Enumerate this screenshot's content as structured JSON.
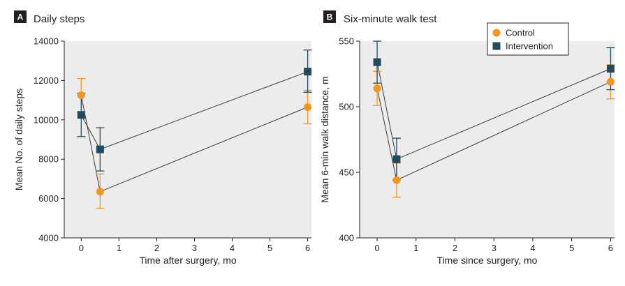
{
  "colors": {
    "plot_background": "#ececec",
    "control": "#f7941d",
    "intervention": "#1f4b5c",
    "line": "#3a3a3a",
    "axis": "#231f20",
    "letter_box": "#231f20"
  },
  "legend": {
    "items": [
      {
        "label": "Control",
        "marker": "circle",
        "color": "#f7941d"
      },
      {
        "label": "Intervention",
        "marker": "square",
        "color": "#1f4b5c"
      }
    ]
  },
  "chart_data": [
    {
      "type": "line",
      "panel_letter": "A",
      "title": "Daily steps",
      "xlabel": "Time after surgery, mo",
      "ylabel": "Mean No. of daily steps",
      "xlim": [
        -0.45,
        6.1
      ],
      "ylim": [
        4000,
        14000
      ],
      "xticks": [
        0,
        1,
        2,
        3,
        4,
        5,
        6
      ],
      "yticks": [
        4000,
        6000,
        8000,
        10000,
        12000,
        14000
      ],
      "ytick_labels": [
        "4000",
        "6000",
        "8000",
        "10000",
        "12000",
        "14000"
      ],
      "grid": false,
      "series": [
        {
          "name": "Control",
          "x": [
            0,
            0.5,
            6
          ],
          "y": [
            11250,
            6350,
            10650
          ],
          "err_low": [
            10400,
            5500,
            9800
          ],
          "err_high": [
            12100,
            7250,
            11500
          ]
        },
        {
          "name": "Intervention",
          "x": [
            0,
            0.5,
            6
          ],
          "y": [
            10250,
            8500,
            12450
          ],
          "err_low": [
            9150,
            7400,
            11400
          ],
          "err_high": [
            11350,
            9600,
            13550
          ]
        }
      ]
    },
    {
      "type": "line",
      "panel_letter": "B",
      "title": "Six-minute walk test",
      "xlabel": "Time since surgery, mo",
      "ylabel": "Mean 6-min walk distance, m",
      "xlim": [
        -0.45,
        6.1
      ],
      "ylim": [
        400,
        550
      ],
      "xticks": [
        0,
        1,
        2,
        3,
        4,
        5,
        6
      ],
      "yticks": [
        400,
        450,
        500,
        550
      ],
      "ytick_labels": [
        "400",
        "450",
        "500",
        "550"
      ],
      "grid": false,
      "legend_position": "top-right",
      "series": [
        {
          "name": "Control",
          "x": [
            0,
            0.5,
            6
          ],
          "y": [
            514,
            444,
            519
          ],
          "err_low": [
            501,
            431,
            506
          ],
          "err_high": [
            527,
            457,
            532
          ]
        },
        {
          "name": "Intervention",
          "x": [
            0,
            0.5,
            6
          ],
          "y": [
            534,
            460,
            529
          ],
          "err_low": [
            518,
            444,
            513
          ],
          "err_high": [
            550,
            476,
            545
          ]
        }
      ]
    }
  ]
}
